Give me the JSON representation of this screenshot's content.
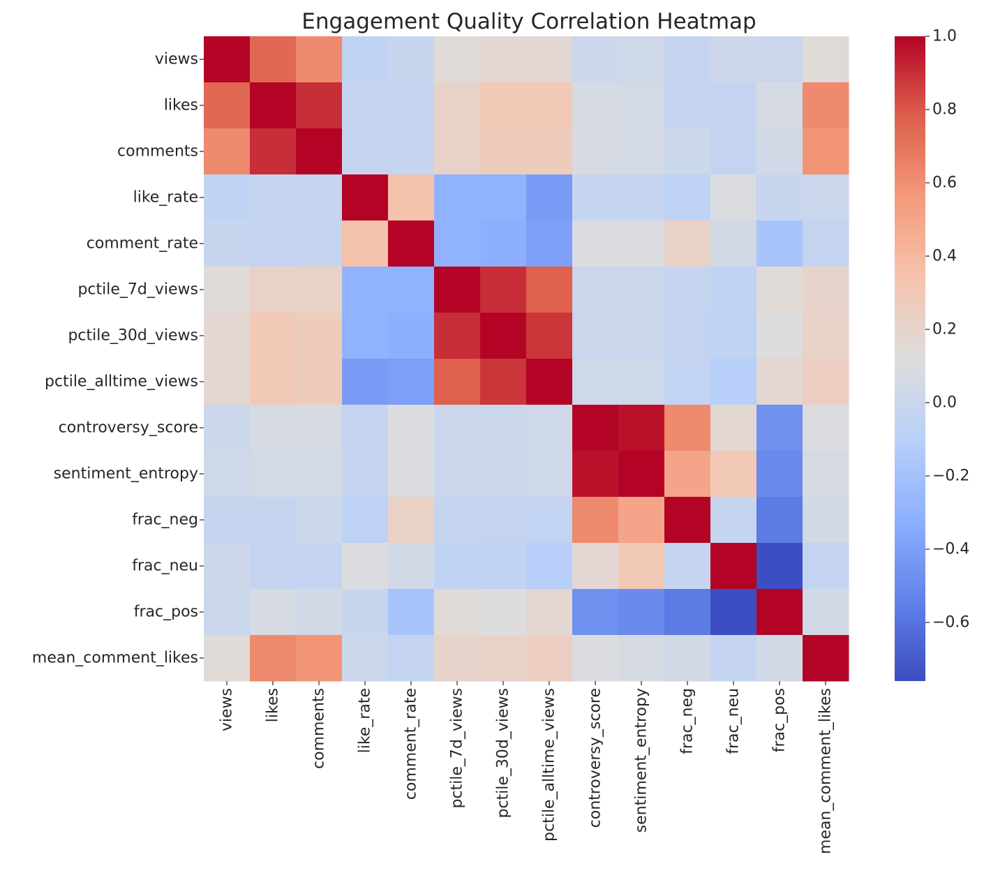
{
  "chart_data": {
    "type": "heatmap",
    "title": "Engagement Quality Correlation Heatmap",
    "xlabel": "",
    "ylabel": "",
    "row_labels": [
      "views",
      "likes",
      "comments",
      "like_rate",
      "comment_rate",
      "pctile_7d_views",
      "pctile_30d_views",
      "pctile_alltime_views",
      "controversy_score",
      "sentiment_entropy",
      "frac_neg",
      "frac_neu",
      "frac_pos",
      "mean_comment_likes"
    ],
    "col_labels": [
      "views",
      "likes",
      "comments",
      "like_rate",
      "comment_rate",
      "pctile_7d_views",
      "pctile_30d_views",
      "pctile_alltime_views",
      "controversy_score",
      "sentiment_entropy",
      "frac_neg",
      "frac_neu",
      "frac_pos",
      "mean_comment_likes"
    ],
    "matrix": [
      [
        1.0,
        0.75,
        0.62,
        -0.05,
        -0.01,
        0.15,
        0.17,
        0.17,
        0.01,
        0.03,
        -0.02,
        0.02,
        0.0,
        0.15
      ],
      [
        0.75,
        1.0,
        0.9,
        -0.02,
        -0.03,
        0.22,
        0.3,
        0.3,
        0.07,
        0.06,
        -0.02,
        -0.03,
        0.07,
        0.62
      ],
      [
        0.62,
        0.9,
        1.0,
        -0.02,
        -0.02,
        0.22,
        0.27,
        0.27,
        0.07,
        0.06,
        0.01,
        -0.03,
        0.05,
        0.58
      ],
      [
        -0.05,
        -0.02,
        -0.02,
        1.0,
        0.35,
        -0.3,
        -0.3,
        -0.42,
        -0.02,
        -0.02,
        -0.07,
        0.1,
        -0.01,
        0.0
      ],
      [
        -0.01,
        -0.03,
        -0.02,
        0.35,
        1.0,
        -0.3,
        -0.32,
        -0.4,
        0.1,
        0.1,
        0.23,
        0.05,
        -0.18,
        -0.03
      ],
      [
        0.15,
        0.22,
        0.22,
        -0.3,
        -0.3,
        1.0,
        0.9,
        0.78,
        0.0,
        0.0,
        -0.02,
        -0.05,
        0.15,
        0.2
      ],
      [
        0.17,
        0.3,
        0.27,
        -0.3,
        -0.32,
        0.9,
        1.0,
        0.88,
        0.0,
        0.0,
        -0.03,
        -0.05,
        0.12,
        0.22
      ],
      [
        0.17,
        0.3,
        0.27,
        -0.42,
        -0.4,
        0.78,
        0.88,
        1.0,
        0.03,
        0.03,
        -0.04,
        -0.1,
        0.18,
        0.25
      ],
      [
        0.01,
        0.07,
        0.07,
        -0.02,
        0.1,
        0.0,
        0.0,
        0.03,
        1.0,
        0.97,
        0.62,
        0.17,
        -0.47,
        0.1
      ],
      [
        0.03,
        0.06,
        0.06,
        -0.02,
        0.1,
        0.0,
        0.0,
        0.03,
        0.97,
        1.0,
        0.5,
        0.3,
        -0.5,
        0.07
      ],
      [
        -0.02,
        -0.02,
        0.01,
        -0.07,
        0.23,
        -0.02,
        -0.03,
        -0.04,
        0.62,
        0.5,
        1.0,
        -0.02,
        -0.57,
        0.05
      ],
      [
        0.02,
        -0.03,
        -0.03,
        0.1,
        0.05,
        -0.05,
        -0.05,
        -0.1,
        0.17,
        0.3,
        -0.02,
        1.0,
        -0.75,
        -0.03
      ],
      [
        0.0,
        0.07,
        0.05,
        -0.01,
        -0.18,
        0.15,
        0.12,
        0.18,
        -0.47,
        -0.5,
        -0.57,
        -0.75,
        1.0,
        0.05
      ],
      [
        0.15,
        0.62,
        0.58,
        0.0,
        -0.03,
        0.2,
        0.22,
        0.25,
        0.1,
        0.07,
        0.05,
        -0.03,
        0.05,
        1.0
      ]
    ],
    "colormap": "coolwarm",
    "vmin": -0.76,
    "vmax": 1.0,
    "colorbar_ticks": [
      1.0,
      0.8,
      0.6,
      0.4,
      0.2,
      0.0,
      -0.2,
      -0.4,
      -0.6
    ],
    "colorbar_tick_labels": [
      "1.0",
      "0.8",
      "0.6",
      "0.4",
      "0.2",
      "0.0",
      "−0.2",
      "−0.4",
      "−0.6"
    ],
    "grid": false,
    "legend": "colorbar-right"
  }
}
